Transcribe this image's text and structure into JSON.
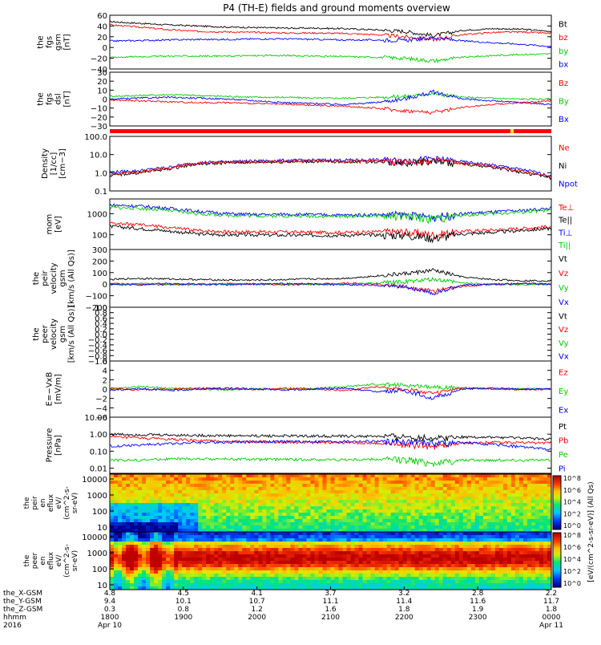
{
  "title": "P4 (TH-E) fields and ground moments overview",
  "chart_data": {
    "type": "line",
    "panels": [
      {
        "id": "fgs",
        "ylabel_lines": [
          "the",
          "fgs",
          "gsm",
          "[nT]"
        ],
        "ylim": [
          -40,
          60
        ],
        "yticks": [
          "60",
          "40",
          "20",
          "0",
          "−20",
          "−40"
        ],
        "legend": [
          {
            "label": "Bt",
            "color": "#000000"
          },
          {
            "label": "bz",
            "color": "#ff0000"
          },
          {
            "label": "by",
            "color": "#00cc00"
          },
          {
            "label": "bx",
            "color": "#0000ff"
          }
        ],
        "series": [
          {
            "color": "#000000",
            "approx": [
              48,
              45,
              42,
              40,
              38,
              37,
              36,
              36,
              35,
              33,
              30,
              22,
              32,
              35,
              34,
              30
            ]
          },
          {
            "color": "#ff0000",
            "approx": [
              42,
              38,
              33,
              30,
              29,
              28,
              27,
              27,
              26,
              24,
              20,
              15,
              24,
              28,
              29,
              26
            ]
          },
          {
            "color": "#0000ff",
            "approx": [
              12,
              13,
              14,
              15,
              15,
              16,
              16,
              15,
              14,
              14,
              13,
              18,
              12,
              9,
              6,
              2
            ]
          },
          {
            "color": "#00cc00",
            "approx": [
              -18,
              -17,
              -16,
              -16,
              -16,
              -15,
              -15,
              -16,
              -17,
              -18,
              -20,
              -25,
              -18,
              -15,
              -13,
              -12
            ]
          }
        ]
      },
      {
        "id": "fgs2",
        "ylabel_lines": [
          "the",
          "fgs",
          "dsl",
          "[nT]"
        ],
        "ylim": [
          -30,
          30
        ],
        "yticks": [
          "30",
          "20",
          "10",
          "0",
          "−10",
          "−20",
          "−30"
        ],
        "legend": [
          {
            "label": "Bz",
            "color": "#ff0000"
          },
          {
            "label": "By",
            "color": "#00cc00"
          },
          {
            "label": "Bx",
            "color": "#0000ff"
          }
        ],
        "series": [
          {
            "color": "#00cc00",
            "approx": [
              3,
              4,
              5,
              4,
              3,
              2,
              2,
              1,
              1,
              2,
              3,
              6,
              2,
              1,
              0,
              0
            ]
          },
          {
            "color": "#0000ff",
            "approx": [
              0,
              1,
              2,
              1,
              0,
              -2,
              -4,
              -5,
              -6,
              -4,
              0,
              8,
              0,
              -2,
              -4,
              -6
            ]
          },
          {
            "color": "#ff0000",
            "approx": [
              -1,
              -2,
              -3,
              -4,
              -4,
              -5,
              -6,
              -7,
              -8,
              -10,
              -13,
              -15,
              -9,
              -6,
              -4,
              -2
            ]
          }
        ]
      },
      {
        "id": "dens",
        "ylabel_lines": [
          "Density",
          "[1/cc]",
          "[cm−3]"
        ],
        "ylim": [
          0.1,
          100
        ],
        "log": true,
        "yticks": [
          "100.0",
          "10.0",
          "1.0",
          "0.1"
        ],
        "legend": [
          {
            "label": "Ne",
            "color": "#ff0000"
          },
          {
            "label": "Ni",
            "color": "#000000"
          },
          {
            "label": "Npot",
            "color": "#0000ff"
          }
        ],
        "series": [
          {
            "color": "#0000ff",
            "approx": [
              1.1,
              1.3,
              2.0,
              3.6,
              4.2,
              4.5,
              4.8,
              5.0,
              5.0,
              5.2,
              4.8,
              6.0,
              4.0,
              2.6,
              1.5,
              0.6
            ]
          },
          {
            "color": "#000000",
            "approx": [
              0.7,
              1.0,
              1.6,
              3.0,
              3.5,
              3.8,
              4.0,
              4.2,
              4.0,
              4.1,
              3.8,
              4.5,
              3.0,
              2.0,
              1.0,
              0.5
            ]
          },
          {
            "color": "#ff0000",
            "approx": [
              0.8,
              1.1,
              1.8,
              3.2,
              3.8,
              4.0,
              4.2,
              4.4,
              4.3,
              4.4,
              4.0,
              4.8,
              3.2,
              2.2,
              1.2,
              0.6
            ]
          }
        ]
      },
      {
        "id": "temp",
        "ylabel_lines": [
          "mom",
          "[eV]"
        ],
        "ylim": [
          20,
          5000
        ],
        "log": true,
        "yticks": [
          "1000",
          "100"
        ],
        "legend": [
          {
            "label": "Te⊥",
            "color": "#ff0000"
          },
          {
            "label": "Te||",
            "color": "#000000"
          },
          {
            "label": "Ti⊥",
            "color": "#0000ff"
          },
          {
            "label": "Ti||",
            "color": "#00cc00"
          }
        ],
        "series": [
          {
            "color": "#0000ff",
            "approx": [
              2600,
              2300,
              1800,
              1300,
              1000,
              900,
              950,
              900,
              850,
              900,
              900,
              700,
              1000,
              1200,
              1400,
              1800
            ]
          },
          {
            "color": "#00cc00",
            "approx": [
              2000,
              1800,
              1400,
              1000,
              850,
              800,
              800,
              780,
              760,
              800,
              780,
              600,
              850,
              1000,
              1200,
              1500
            ]
          },
          {
            "color": "#ff0000",
            "approx": [
              350,
              300,
              220,
              160,
              140,
              140,
              135,
              130,
              130,
              140,
              140,
              100,
              150,
              170,
              200,
              250
            ]
          },
          {
            "color": "#000000",
            "approx": [
              250,
              200,
              150,
              110,
              100,
              100,
              95,
              95,
              95,
              100,
              100,
              70,
              110,
              130,
              160,
              200
            ]
          }
        ]
      },
      {
        "id": "vel",
        "ylabel_lines": [
          "the",
          "peir",
          "velocity",
          "gsm",
          "[km/s (All Qs)]"
        ],
        "ylim": [
          -200,
          300
        ],
        "yticks": [
          "300",
          "200",
          "100",
          "0",
          "−100",
          "−200"
        ],
        "legend": [
          {
            "label": "Vt",
            "color": "#000000"
          },
          {
            "label": "Vz",
            "color": "#ff0000"
          },
          {
            "label": "Vy",
            "color": "#00cc00"
          },
          {
            "label": "Vx",
            "color": "#0000ff"
          }
        ],
        "series": [
          {
            "color": "#000000",
            "approx": [
              40,
              50,
              45,
              40,
              35,
              35,
              40,
              45,
              50,
              70,
              90,
              120,
              60,
              40,
              30,
              30
            ]
          },
          {
            "color": "#ff0000",
            "approx": [
              5,
              0,
              -5,
              0,
              5,
              0,
              -5,
              0,
              10,
              0,
              -20,
              -60,
              -20,
              0,
              5,
              0
            ]
          },
          {
            "color": "#00cc00",
            "approx": [
              -5,
              5,
              0,
              -5,
              0,
              5,
              0,
              -5,
              0,
              10,
              20,
              40,
              10,
              0,
              -5,
              0
            ]
          },
          {
            "color": "#0000ff",
            "approx": [
              0,
              -5,
              5,
              0,
              -5,
              0,
              5,
              0,
              -5,
              -10,
              -20,
              -80,
              -10,
              0,
              5,
              0
            ]
          }
        ]
      },
      {
        "id": "vel2",
        "ylabel_lines": [
          "the",
          "peer",
          "velocity",
          "gsm",
          "[km/s (All Qs)]"
        ],
        "ylim": [
          -1,
          1
        ],
        "yticks": [
          "1.0",
          "0.8",
          "0.6",
          "0.4",
          "0.2",
          "0.0",
          "−0.2",
          "−0.4",
          "−0.6",
          "−0.8",
          "−1.0"
        ],
        "legend": [
          {
            "label": "Vt",
            "color": "#000000"
          },
          {
            "label": "Vz",
            "color": "#ff0000"
          },
          {
            "label": "Vy",
            "color": "#00cc00"
          },
          {
            "label": "Vx",
            "color": "#0000ff"
          }
        ],
        "series": []
      },
      {
        "id": "efield",
        "ylabel_lines": [
          "E=−VxB",
          "[mV/m]"
        ],
        "ylim": [
          -6,
          6
        ],
        "yticks": [
          "6",
          "4",
          "2",
          "0",
          "−2",
          "−4",
          "−6"
        ],
        "legend": [
          {
            "label": "Ez",
            "color": "#ff0000"
          },
          {
            "label": "Ey",
            "color": "#00cc00"
          },
          {
            "label": "Ex",
            "color": "#0000ff"
          }
        ],
        "series": [
          {
            "color": "#00cc00",
            "approx": [
              0,
              0.5,
              0.2,
              0,
              -0.2,
              0.1,
              0,
              0.2,
              0.5,
              1.0,
              0.8,
              0.5,
              0.2,
              0,
              0.1,
              0
            ]
          },
          {
            "color": "#ff0000",
            "approx": [
              0.2,
              -0.2,
              0,
              0.2,
              0,
              -0.1,
              0.2,
              0,
              -0.3,
              0.5,
              0,
              -1.0,
              0.3,
              0,
              -0.1,
              0
            ]
          },
          {
            "color": "#0000ff",
            "approx": [
              -0.2,
              0.1,
              -0.3,
              0,
              0.2,
              0,
              -0.2,
              0,
              0.2,
              -0.5,
              -0.3,
              -2.0,
              0,
              0.2,
              0,
              0
            ]
          }
        ]
      },
      {
        "id": "press",
        "ylabel_lines": [
          "Pressure",
          "[nPa]"
        ],
        "ylim": [
          0.005,
          10
        ],
        "log": true,
        "yticks": [
          "10.00",
          "1.00",
          "0.10",
          "0.01"
        ],
        "legend": [
          {
            "label": "Pt",
            "color": "#000000"
          },
          {
            "label": "Pb",
            "color": "#ff0000"
          },
          {
            "label": "Pe",
            "color": "#00cc00"
          },
          {
            "label": "Pi",
            "color": "#0000ff"
          }
        ],
        "series": [
          {
            "color": "#000000",
            "approx": [
              1.0,
              0.95,
              0.9,
              0.85,
              0.82,
              0.8,
              0.8,
              0.78,
              0.76,
              0.75,
              0.72,
              0.6,
              0.7,
              0.65,
              0.6,
              0.5
            ]
          },
          {
            "color": "#ff0000",
            "approx": [
              0.7,
              0.6,
              0.5,
              0.42,
              0.38,
              0.36,
              0.34,
              0.33,
              0.32,
              0.3,
              0.26,
              0.2,
              0.3,
              0.33,
              0.33,
              0.3
            ]
          },
          {
            "color": "#0000ff",
            "approx": [
              0.2,
              0.23,
              0.28,
              0.33,
              0.35,
              0.36,
              0.37,
              0.37,
              0.37,
              0.38,
              0.37,
              0.3,
              0.32,
              0.25,
              0.18,
              0.12
            ]
          },
          {
            "color": "#00cc00",
            "approx": [
              0.03,
              0.03,
              0.035,
              0.035,
              0.035,
              0.033,
              0.033,
              0.032,
              0.032,
              0.033,
              0.033,
              0.02,
              0.03,
              0.03,
              0.03,
              0.03
            ]
          }
        ]
      }
    ],
    "spectrograms": [
      {
        "id": "peir_en",
        "ylabel_lines": [
          "the",
          "peir",
          "en",
          "eflux",
          "eV/",
          "(cm^2-s-",
          "sr-eV)"
        ],
        "ylim": [
          5,
          20000
        ],
        "log": true,
        "yticks": [
          "10000",
          "1000",
          "100",
          "10"
        ]
      },
      {
        "id": "peer_en",
        "ylabel_lines": [
          "the",
          "peer",
          "en",
          "eflux",
          "eV/",
          "(cm^2-s-",
          "sr-eV)"
        ],
        "ylim": [
          5,
          20000
        ],
        "log": true,
        "yticks": [
          "10000",
          "1000",
          "100",
          "10"
        ]
      }
    ],
    "colorbar": {
      "label": "[eV/(cm^2-s-sr-eV)] (All Qs)",
      "ticks": [
        "10^8",
        "10^6",
        "10^4",
        "10^2",
        "10^0",
        "10^8",
        "10^6",
        "10^4",
        "10^2",
        "10^0"
      ]
    },
    "x_axis": {
      "row_labels": [
        "the_X-GSM",
        "the_Y-GSM",
        "the_Z-GSM",
        "hhmm",
        "2016"
      ],
      "columns": [
        {
          "x": "4.8",
          "y": "9.4",
          "z": "0.3",
          "hhmm": "1800",
          "date": "Apr 10"
        },
        {
          "x": "4.5",
          "y": "10.1",
          "z": "0.8",
          "hhmm": "1900",
          "date": ""
        },
        {
          "x": "4.1",
          "y": "10.7",
          "z": "1.2",
          "hhmm": "2000",
          "date": ""
        },
        {
          "x": "3.7",
          "y": "11.1",
          "z": "1.6",
          "hhmm": "2100",
          "date": ""
        },
        {
          "x": "3.2",
          "y": "11.4",
          "z": "1.8",
          "hhmm": "2200",
          "date": ""
        },
        {
          "x": "2.8",
          "y": "11.6",
          "z": "1.9",
          "hhmm": "2300",
          "date": ""
        },
        {
          "x": "2.2",
          "y": "11.7",
          "z": "1.8",
          "hhmm": "0000",
          "date": "Apr 11"
        }
      ]
    }
  }
}
